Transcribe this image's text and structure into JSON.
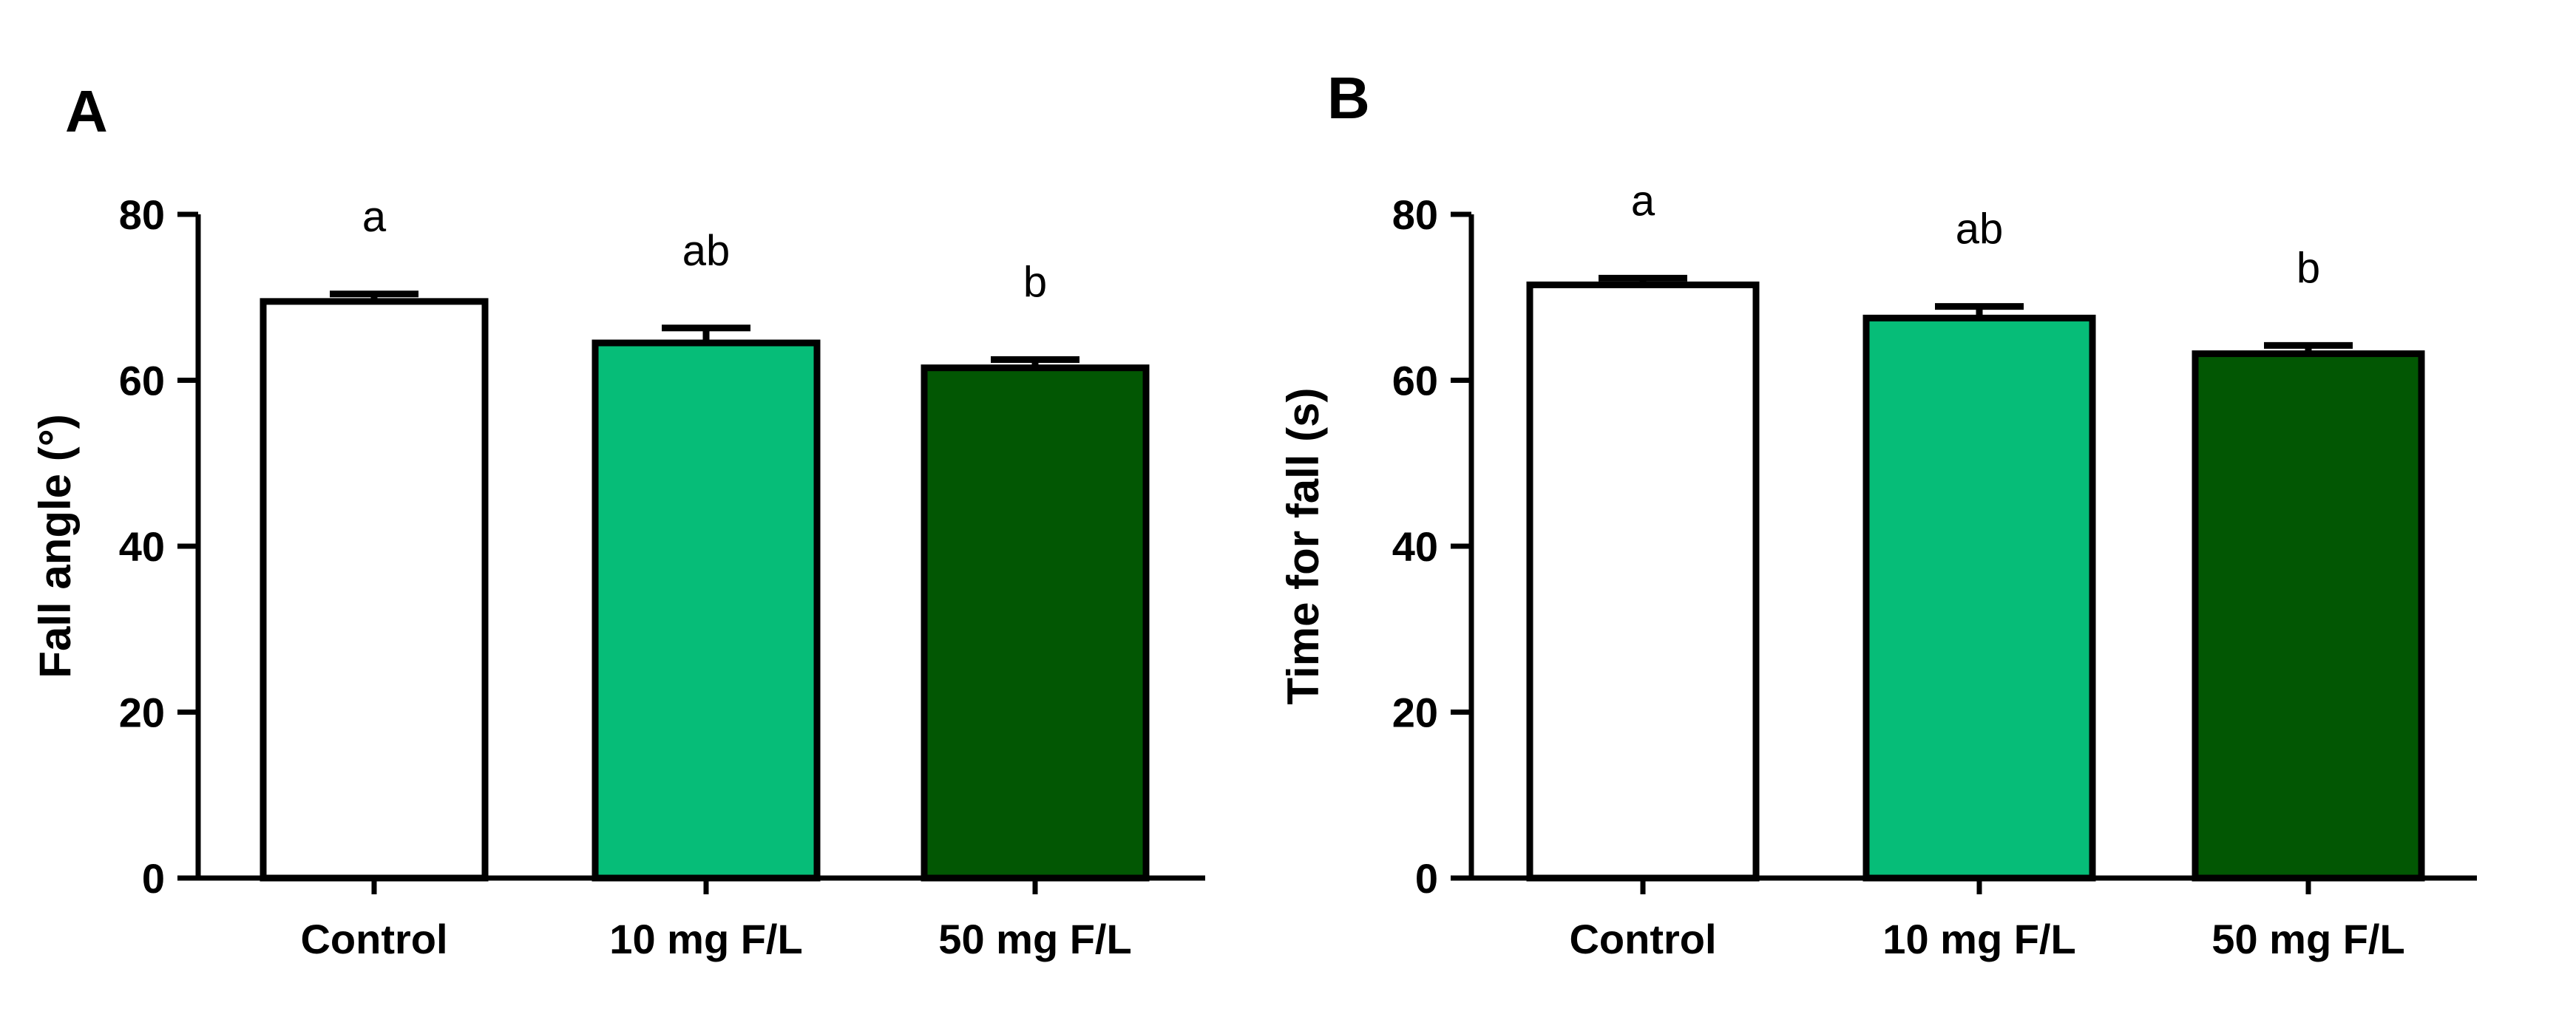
{
  "chart_data": [
    {
      "type": "bar",
      "panel": "A",
      "ylabel": "Fall angle (°)",
      "xlabel": "",
      "ylim": [
        0,
        80
      ],
      "yticks": [
        0,
        20,
        40,
        60,
        80
      ],
      "categories": [
        "Control",
        "10 mg F/L",
        "50 mg F/L"
      ],
      "values": [
        69.5,
        64.5,
        61.5
      ],
      "errors": [
        0.9,
        1.8,
        1.0
      ],
      "significance": [
        "a",
        "ab",
        "b"
      ],
      "colors": [
        "#ffffff",
        "#06bd78",
        "#025703"
      ]
    },
    {
      "type": "bar",
      "panel": "B",
      "ylabel": "Time for fall (s)",
      "xlabel": "",
      "ylim": [
        0,
        80
      ],
      "yticks": [
        0,
        20,
        40,
        60,
        80
      ],
      "categories": [
        "Control",
        "10 mg F/L",
        "50 mg F/L"
      ],
      "values": [
        71.5,
        67.5,
        63.2
      ],
      "errors": [
        0.8,
        1.4,
        1.0
      ],
      "significance": [
        "a",
        "ab",
        "b"
      ],
      "colors": [
        "#ffffff",
        "#06bd78",
        "#025703"
      ]
    }
  ]
}
